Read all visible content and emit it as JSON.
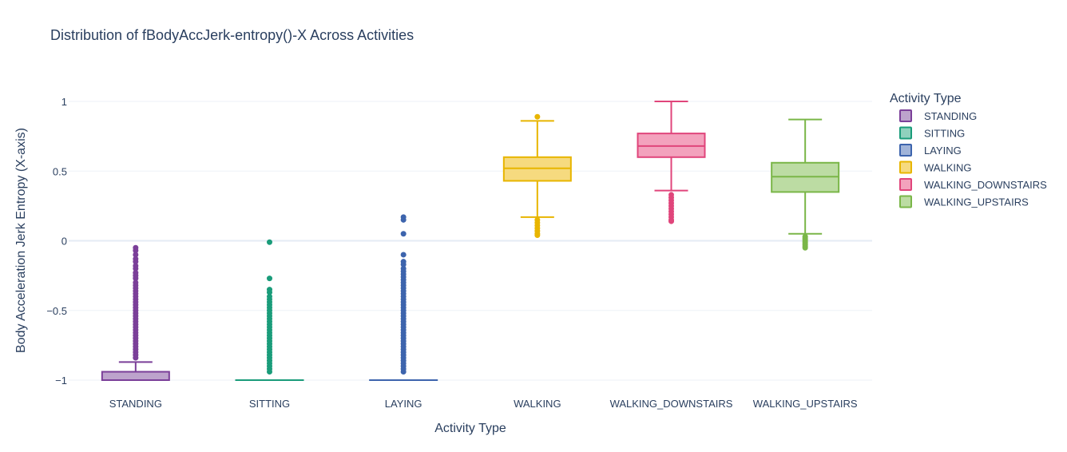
{
  "chart_data": {
    "type": "box",
    "title": "Distribution of fBodyAccJerk-entropy()-X Across Activities",
    "xlabel": "Activity Type",
    "ylabel": "Body Acceleration Jerk Entropy (X-axis)",
    "ylim": [
      -1.1,
      1.1
    ],
    "yticks": [
      1,
      0.5,
      0,
      -0.5,
      -1
    ],
    "ytick_labels": [
      "1",
      "0.5",
      "0",
      "−0.5",
      "−1"
    ],
    "grid": true,
    "legend": {
      "title": "Activity Type",
      "placement": "right"
    },
    "categories": [
      "STANDING",
      "SITTING",
      "LAYING",
      "WALKING",
      "WALKING_DOWNSTAIRS",
      "WALKING_UPSTAIRS"
    ],
    "series": [
      {
        "name": "STANDING",
        "color": "#7b3f99",
        "fill": "#bda3cc",
        "lower_fence": -1.0,
        "q1": -1.0,
        "median": -1.0,
        "q3": -0.94,
        "upper_fence": -0.87,
        "outliers": [
          -0.05,
          -0.07,
          -0.1,
          -0.13,
          -0.15,
          -0.18,
          -0.2,
          -0.23,
          -0.25,
          -0.27,
          -0.3,
          -0.32,
          -0.34,
          -0.36,
          -0.38,
          -0.4,
          -0.42,
          -0.44,
          -0.46,
          -0.48,
          -0.5,
          -0.52,
          -0.54,
          -0.56,
          -0.58,
          -0.6,
          -0.62,
          -0.64,
          -0.66,
          -0.68,
          -0.7,
          -0.72,
          -0.74,
          -0.76,
          -0.78,
          -0.8,
          -0.82,
          -0.84
        ]
      },
      {
        "name": "SITTING",
        "color": "#1a9c7a",
        "fill": "#8fd1bd",
        "lower_fence": -1.0,
        "q1": -1.0,
        "median": -1.0,
        "q3": -1.0,
        "upper_fence": -1.0,
        "outliers": [
          -0.01,
          -0.27,
          -0.35,
          -0.37,
          -0.4,
          -0.42,
          -0.44,
          -0.46,
          -0.48,
          -0.5,
          -0.52,
          -0.54,
          -0.56,
          -0.58,
          -0.6,
          -0.62,
          -0.64,
          -0.66,
          -0.68,
          -0.7,
          -0.72,
          -0.74,
          -0.76,
          -0.78,
          -0.8,
          -0.82,
          -0.84,
          -0.86,
          -0.88,
          -0.9,
          -0.92,
          -0.94
        ]
      },
      {
        "name": "LAYING",
        "color": "#3d64ad",
        "fill": "#a1b4d9",
        "lower_fence": -1.0,
        "q1": -1.0,
        "median": -1.0,
        "q3": -1.0,
        "upper_fence": -1.0,
        "outliers": [
          0.17,
          0.15,
          0.05,
          -0.1,
          -0.15,
          -0.17,
          -0.2,
          -0.22,
          -0.24,
          -0.26,
          -0.28,
          -0.3,
          -0.32,
          -0.34,
          -0.36,
          -0.38,
          -0.4,
          -0.42,
          -0.44,
          -0.46,
          -0.48,
          -0.5,
          -0.52,
          -0.54,
          -0.56,
          -0.58,
          -0.6,
          -0.62,
          -0.64,
          -0.66,
          -0.68,
          -0.7,
          -0.72,
          -0.74,
          -0.76,
          -0.78,
          -0.8,
          -0.82,
          -0.84,
          -0.86,
          -0.88,
          -0.9,
          -0.92,
          -0.94
        ]
      },
      {
        "name": "WALKING",
        "color": "#e8b500",
        "fill": "#f6da7f",
        "lower_fence": 0.17,
        "q1": 0.43,
        "median": 0.52,
        "q3": 0.6,
        "upper_fence": 0.86,
        "outliers": [
          0.89,
          0.15,
          0.13,
          0.11,
          0.09,
          0.07,
          0.05,
          0.04
        ]
      },
      {
        "name": "WALKING_DOWNSTAIRS",
        "color": "#e0457b",
        "fill": "#f3a2bd",
        "lower_fence": 0.36,
        "q1": 0.6,
        "median": 0.68,
        "q3": 0.77,
        "upper_fence": 1.0,
        "outliers": [
          0.33,
          0.31,
          0.29,
          0.27,
          0.25,
          0.23,
          0.21,
          0.19,
          0.17,
          0.15,
          0.14
        ]
      },
      {
        "name": "WALKING_UPSTAIRS",
        "color": "#7ab648",
        "fill": "#bcdca3",
        "lower_fence": 0.05,
        "q1": 0.35,
        "median": 0.46,
        "q3": 0.56,
        "upper_fence": 0.87,
        "outliers": [
          0.03,
          0.02,
          0.01,
          0.0,
          -0.01,
          -0.02,
          -0.03,
          -0.04,
          -0.05
        ]
      }
    ]
  }
}
